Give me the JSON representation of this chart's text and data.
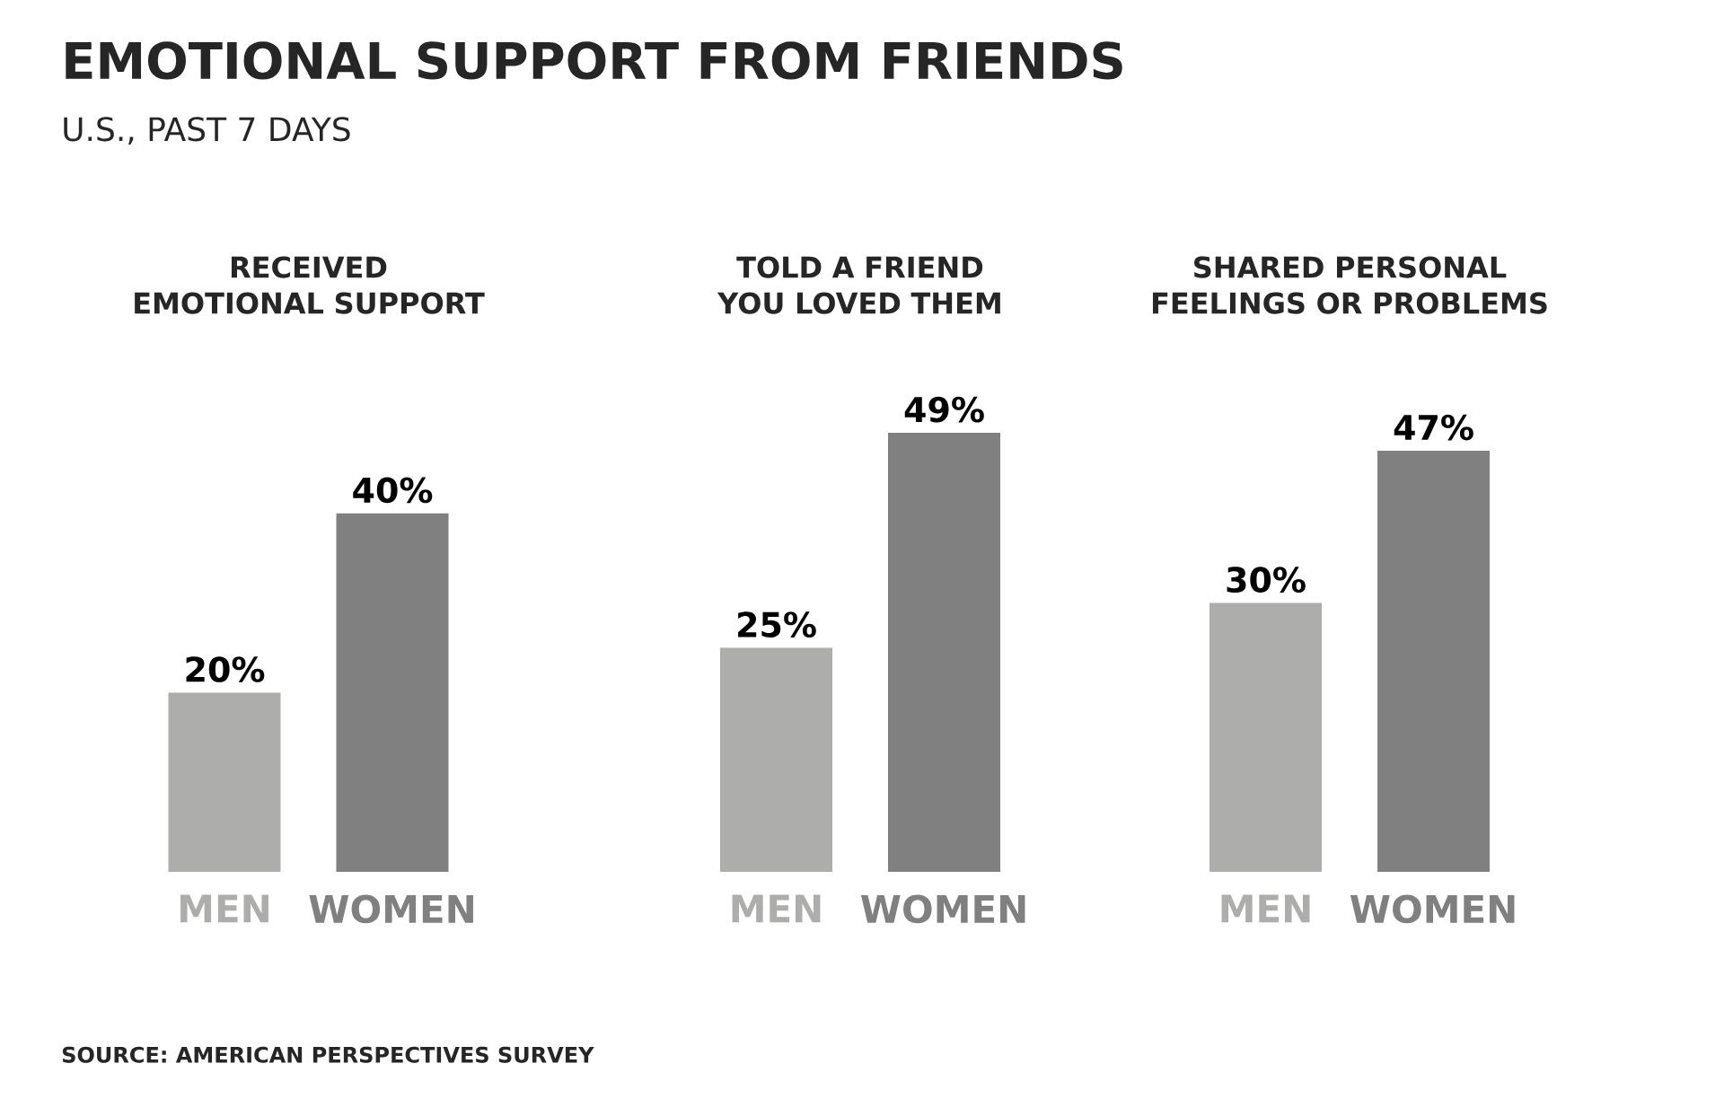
{
  "chart_data": [
    {
      "type": "other",
      "title": "EMOTIONAL SUPPORT FROM FRIENDS",
      "subtitle": "U.S., PAST 7 DAYS",
      "annotations": [
        "SOURCE: AMERICAN PERSPECTIVES SURVEY"
      ]
    },
    {
      "type": "bar",
      "title": "RECEIVED EMOTIONAL SUPPORT",
      "categories": [
        "MEN",
        "WOMEN"
      ],
      "values": [
        20,
        40
      ],
      "value_labels": [
        "20%",
        "40%"
      ],
      "colors": [
        "#adadac",
        "#808080"
      ]
    },
    {
      "type": "bar",
      "title": "TOLD A FRIEND YOU LOVED THEM",
      "categories": [
        "MEN",
        "WOMEN"
      ],
      "values": [
        25,
        49
      ],
      "value_labels": [
        "25%",
        "49%"
      ],
      "colors": [
        "#adadac",
        "#808080"
      ]
    },
    {
      "type": "bar",
      "title": "SHARED PERSONAL FEELINGS OR PROBLEMS",
      "categories": [
        "MEN",
        "WOMEN"
      ],
      "values": [
        30,
        47
      ],
      "value_labels": [
        "30%",
        "47%"
      ],
      "colors": [
        "#adadac",
        "#808080"
      ]
    }
  ]
}
